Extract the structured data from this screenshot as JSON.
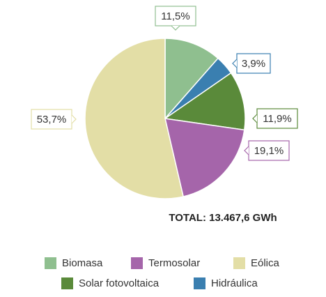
{
  "chart_data": {
    "type": "pie",
    "categories": [
      "Biomasa",
      "Hidráulica",
      "Solar fotovoltaica",
      "Termosolar",
      "Eólica"
    ],
    "values": [
      11.5,
      3.9,
      11.9,
      19.1,
      53.7
    ],
    "value_labels": [
      "11,5%",
      "3,9%",
      "11,9%",
      "19,1%",
      "53,7%"
    ],
    "colors": [
      "#8fbf8f",
      "#3a7fb0",
      "#5a8a3a",
      "#a565aa",
      "#e3dea6"
    ],
    "annotation": "TOTAL: 13.467,6 GWh"
  }
}
